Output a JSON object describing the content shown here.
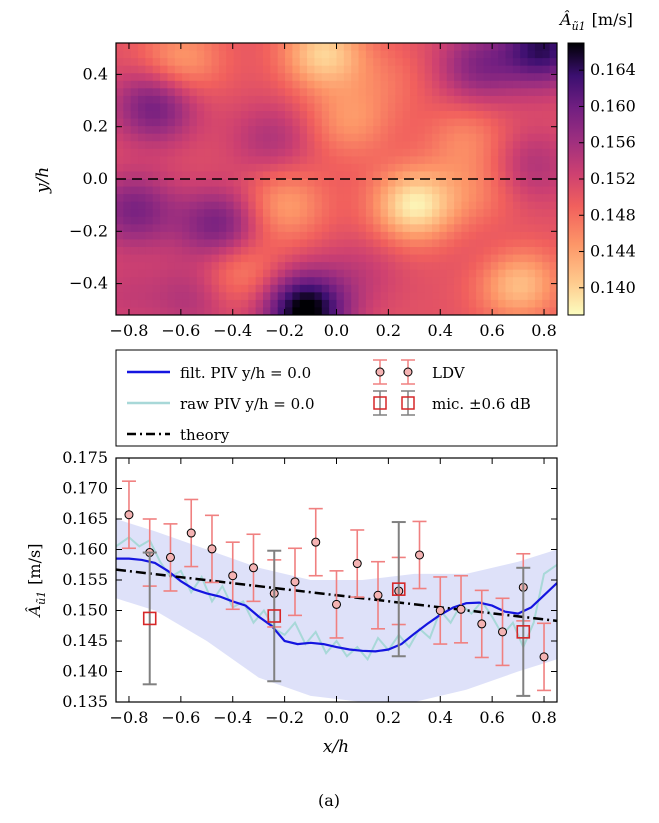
{
  "caption": "(a)",
  "chart_data": [
    {
      "type": "heatmap",
      "xlabel": "x/h",
      "ylabel": "y/h",
      "xlim": [
        -0.85,
        0.85
      ],
      "ylim": [
        -0.52,
        0.52
      ],
      "x_ticks": [
        "−0.8",
        "−0.6",
        "−0.4",
        "−0.2",
        "0.0",
        "0.2",
        "0.4",
        "0.6",
        "0.8"
      ],
      "y_ticks": [
        "0.4",
        "0.2",
        "0.0",
        "−0.2",
        "−0.4"
      ],
      "colorbar": {
        "label": "Â_ũ1 [m/s]",
        "label_main": "Â",
        "label_sub": "ũ1",
        "label_unit": "[m/s]",
        "range": [
          0.137,
          0.167
        ],
        "ticks": [
          "0.164",
          "0.160",
          "0.156",
          "0.152",
          "0.148",
          "0.144",
          "0.140"
        ],
        "colormap": "magma_r"
      },
      "reference_line": {
        "y": 0.0,
        "style": "dashed"
      },
      "grid": {
        "nx": 60,
        "ny": 36
      },
      "peaks": [
        {
          "x": -0.12,
          "y": -0.5,
          "value": 0.168
        },
        {
          "x": -0.7,
          "y": 0.28,
          "value": 0.16
        },
        {
          "x": -0.78,
          "y": -0.12,
          "value": 0.159
        },
        {
          "x": -0.45,
          "y": -0.18,
          "value": 0.16
        },
        {
          "x": -0.25,
          "y": 0.15,
          "value": 0.155
        },
        {
          "x": 0.55,
          "y": 0.43,
          "value": 0.158
        },
        {
          "x": 0.8,
          "y": 0.5,
          "value": 0.164
        },
        {
          "x": -0.82,
          "y": -0.45,
          "value": 0.153
        },
        {
          "x": 0.75,
          "y": 0.05,
          "value": 0.155
        },
        {
          "x": 0.1,
          "y": -0.35,
          "value": 0.153
        },
        {
          "x": 0.62,
          "y": -0.3,
          "value": 0.152
        },
        {
          "x": -0.55,
          "y": -0.45,
          "value": 0.155
        }
      ],
      "troughs": [
        {
          "x": 0.3,
          "y": -0.1,
          "value": 0.138
        },
        {
          "x": -0.05,
          "y": 0.48,
          "value": 0.14
        },
        {
          "x": -0.2,
          "y": -0.1,
          "value": 0.144
        },
        {
          "x": 0.05,
          "y": 0.22,
          "value": 0.145
        },
        {
          "x": 0.5,
          "y": 0.15,
          "value": 0.146
        },
        {
          "x": 0.55,
          "y": -0.05,
          "value": 0.147
        },
        {
          "x": 0.7,
          "y": -0.4,
          "value": 0.141
        },
        {
          "x": -0.6,
          "y": 0.45,
          "value": 0.144
        },
        {
          "x": -0.38,
          "y": -0.35,
          "value": 0.145
        },
        {
          "x": 0.2,
          "y": 0.38,
          "value": 0.148
        }
      ]
    },
    {
      "type": "line",
      "xlabel": "x/h",
      "ylabel": "Â_ũ1 [m/s]",
      "ylabel_main": "Â",
      "ylabel_sub": "ũ1",
      "ylabel_unit": "[m/s]",
      "xlim": [
        -0.85,
        0.85
      ],
      "ylim": [
        0.135,
        0.175
      ],
      "x_ticks": [
        "−0.8",
        "−0.6",
        "−0.4",
        "−0.2",
        "0.0",
        "0.2",
        "0.4",
        "0.6",
        "0.8"
      ],
      "y_ticks": [
        "0.175",
        "0.170",
        "0.165",
        "0.160",
        "0.155",
        "0.150",
        "0.145",
        "0.140",
        "0.135"
      ],
      "legend": {
        "placement": "above plot",
        "entries": [
          {
            "label": "filt. PIV y/h = 0.0",
            "style": "solid",
            "color": "#1515e0"
          },
          {
            "label": "raw PIV y/h = 0.0",
            "style": "solid",
            "color": "#a8d8d8"
          },
          {
            "label": "theory",
            "style": "dash-dot",
            "color": "#000000"
          },
          {
            "label": "LDV",
            "style": "circle + error bars",
            "color": "#f08080"
          },
          {
            "label": "mic. ±0.6 dB",
            "style": "square + error bars",
            "color": "#d62728"
          }
        ]
      },
      "series": [
        {
          "name": "filt. PIV y/h = 0.0",
          "x": [
            -0.85,
            -0.8,
            -0.75,
            -0.7,
            -0.65,
            -0.6,
            -0.55,
            -0.5,
            -0.45,
            -0.4,
            -0.35,
            -0.3,
            -0.25,
            -0.2,
            -0.15,
            -0.1,
            -0.05,
            0.0,
            0.05,
            0.1,
            0.15,
            0.2,
            0.25,
            0.3,
            0.35,
            0.4,
            0.45,
            0.5,
            0.55,
            0.6,
            0.65,
            0.7,
            0.75,
            0.8,
            0.85
          ],
          "y": [
            0.1585,
            0.1585,
            0.1583,
            0.1578,
            0.1565,
            0.1548,
            0.1535,
            0.1528,
            0.1523,
            0.1515,
            0.1508,
            0.149,
            0.1475,
            0.145,
            0.1445,
            0.1447,
            0.1445,
            0.144,
            0.1436,
            0.1434,
            0.1433,
            0.1436,
            0.1445,
            0.1462,
            0.1478,
            0.1493,
            0.1505,
            0.1512,
            0.1513,
            0.1508,
            0.1498,
            0.1495,
            0.1505,
            0.1525,
            0.1545
          ]
        },
        {
          "name": "raw PIV y/h = 0.0",
          "x": [
            -0.85,
            -0.8,
            -0.76,
            -0.72,
            -0.68,
            -0.64,
            -0.6,
            -0.56,
            -0.52,
            -0.48,
            -0.44,
            -0.4,
            -0.36,
            -0.32,
            -0.28,
            -0.24,
            -0.2,
            -0.16,
            -0.12,
            -0.08,
            -0.04,
            0.0,
            0.04,
            0.08,
            0.12,
            0.16,
            0.2,
            0.24,
            0.28,
            0.32,
            0.36,
            0.4,
            0.44,
            0.48,
            0.52,
            0.56,
            0.6,
            0.64,
            0.68,
            0.72,
            0.76,
            0.8,
            0.85
          ],
          "y": [
            0.1605,
            0.162,
            0.1605,
            0.1615,
            0.158,
            0.1555,
            0.1565,
            0.153,
            0.1555,
            0.1515,
            0.154,
            0.1505,
            0.1515,
            0.148,
            0.15,
            0.147,
            0.146,
            0.148,
            0.1445,
            0.1465,
            0.143,
            0.145,
            0.1425,
            0.144,
            0.142,
            0.1455,
            0.1435,
            0.146,
            0.144,
            0.147,
            0.1455,
            0.15,
            0.148,
            0.151,
            0.1495,
            0.1515,
            0.149,
            0.146,
            0.148,
            0.144,
            0.148,
            0.156,
            0.1575
          ]
        },
        {
          "name": "theory",
          "x": [
            -0.85,
            0.85
          ],
          "y": [
            0.1567,
            0.1483
          ]
        },
        {
          "name": "LDV",
          "x": [
            -0.8,
            -0.72,
            -0.64,
            -0.56,
            -0.48,
            -0.4,
            -0.32,
            -0.24,
            -0.16,
            -0.08,
            0.0,
            0.08,
            0.16,
            0.24,
            0.32,
            0.4,
            0.48,
            0.56,
            0.64,
            0.72,
            0.8
          ],
          "y": [
            0.1657,
            0.1595,
            0.1587,
            0.1627,
            0.1601,
            0.1557,
            0.157,
            0.1528,
            0.1547,
            0.1612,
            0.151,
            0.1577,
            0.1525,
            0.1532,
            0.1591,
            0.15,
            0.1502,
            0.1478,
            0.1465,
            0.1538,
            0.1424
          ],
          "yerr": 0.0055
        },
        {
          "name": "mic. ±0.6 dB",
          "x": [
            -0.72,
            -0.24,
            0.24,
            0.72
          ],
          "y": [
            0.1487,
            0.1491,
            0.1535,
            0.1465
          ],
          "yerr": [
            0.0108,
            0.0107,
            0.011,
            0.0105
          ]
        }
      ],
      "band": {
        "x": [
          -0.85,
          -0.7,
          -0.5,
          -0.3,
          -0.1,
          0.1,
          0.3,
          0.5,
          0.7,
          0.85
        ],
        "upper": [
          0.165,
          0.163,
          0.16,
          0.157,
          0.155,
          0.155,
          0.156,
          0.156,
          0.158,
          0.16
        ],
        "lower": [
          0.152,
          0.15,
          0.145,
          0.139,
          0.136,
          0.135,
          0.135,
          0.137,
          0.14,
          0.142
        ]
      },
      "colors": {
        "filt_piv": "#1515e0",
        "raw_piv": "#a8d8d8",
        "band": "#d8dcf8",
        "theory": "#000000",
        "ldv_err": "#f08080",
        "mic": "#d62728",
        "mic_err": "#808080"
      }
    }
  ]
}
